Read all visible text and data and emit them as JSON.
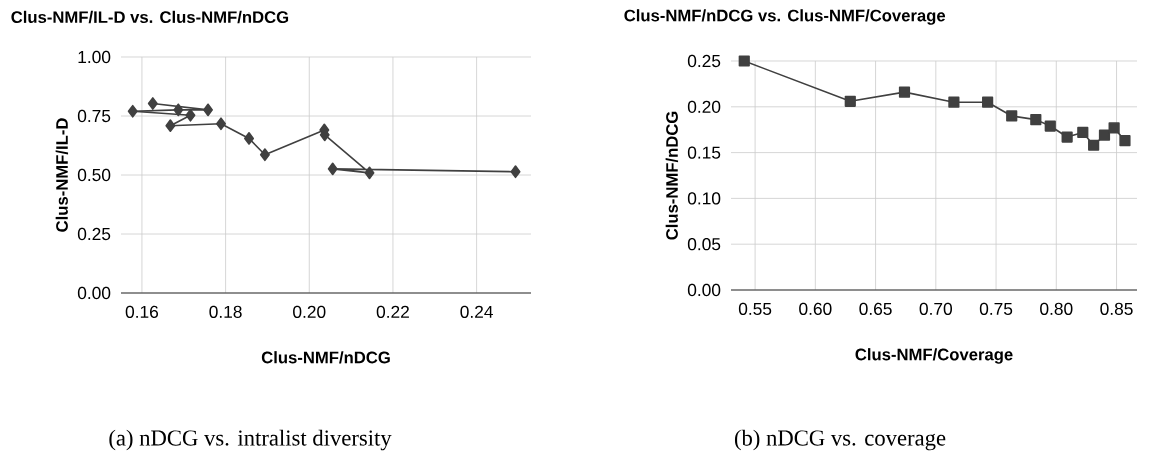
{
  "chart_data": [
    {
      "type": "line",
      "title": "Clus-NMF/IL-D  vs. Clus-NMF/nDCG",
      "xlabel": "Clus-NMF/nDCG",
      "ylabel": "Clus-NMF/IL-D",
      "annotations": [
        "(a) nDCG vs. intralist diversity"
      ],
      "xlim": [
        0.155,
        0.253
      ],
      "ylim": [
        0,
        1
      ],
      "xticks": [
        {
          "value": 0.16,
          "label": "0.16"
        },
        {
          "value": 0.18,
          "label": "0.18"
        },
        {
          "value": 0.2,
          "label": "0.20"
        },
        {
          "value": 0.22,
          "label": "0.22"
        },
        {
          "value": 0.24,
          "label": "0.24"
        }
      ],
      "yticks": [
        {
          "value": 0,
          "label": "0.00"
        },
        {
          "value": 0.25,
          "label": "0.25"
        },
        {
          "value": 0.5,
          "label": "0.50"
        },
        {
          "value": 0.75,
          "label": "0.75"
        },
        {
          "value": 1,
          "label": "1.00"
        }
      ],
      "grid": true,
      "marker": "diamond",
      "series": [
        {
          "color": "#404040",
          "x": [
            0.1626,
            0.1758,
            0.1687,
            0.1578,
            0.1716,
            0.1668,
            0.1789,
            0.1856,
            0.1894,
            0.2036,
            0.2037,
            0.2144,
            0.2056,
            0.2493
          ],
          "values": [
            0.803,
            0.776,
            0.776,
            0.77,
            0.753,
            0.709,
            0.717,
            0.655,
            0.586,
            0.691,
            0.67,
            0.509,
            0.526,
            0.514
          ]
        }
      ]
    },
    {
      "type": "line",
      "title": "Clus-NMF/nDCG vs. Clus-NMF/Coverage",
      "xlabel": "Clus-NMF/Coverage",
      "ylabel": "Clus-NMF/nDCG",
      "annotations": [
        "(b) nDCG vs. coverage"
      ],
      "xlim": [
        0.53,
        0.867
      ],
      "ylim": [
        0,
        0.25
      ],
      "xticks": [
        {
          "value": 0.55,
          "label": "0.55"
        },
        {
          "value": 0.6,
          "label": "0.60"
        },
        {
          "value": 0.65,
          "label": "0.65"
        },
        {
          "value": 0.7,
          "label": "0.70"
        },
        {
          "value": 0.75,
          "label": "0.75"
        },
        {
          "value": 0.8,
          "label": "0.80"
        },
        {
          "value": 0.85,
          "label": "0.85"
        }
      ],
      "yticks": [
        {
          "value": 0,
          "label": "0.00"
        },
        {
          "value": 0.05,
          "label": "0.05"
        },
        {
          "value": 0.1,
          "label": "0.10"
        },
        {
          "value": 0.15,
          "label": "0.15"
        },
        {
          "value": 0.2,
          "label": "0.20"
        },
        {
          "value": 0.25,
          "label": "0.25"
        }
      ],
      "grid": true,
      "marker": "square",
      "series": [
        {
          "color": "#404040",
          "x": [
            0.541,
            0.629,
            0.674,
            0.715,
            0.743,
            0.763,
            0.783,
            0.795,
            0.809,
            0.822,
            0.831,
            0.84,
            0.848,
            0.857
          ],
          "values": [
            0.25,
            0.206,
            0.216,
            0.205,
            0.205,
            0.19,
            0.186,
            0.179,
            0.167,
            0.172,
            0.158,
            0.169,
            0.177,
            0.163
          ]
        }
      ]
    }
  ]
}
